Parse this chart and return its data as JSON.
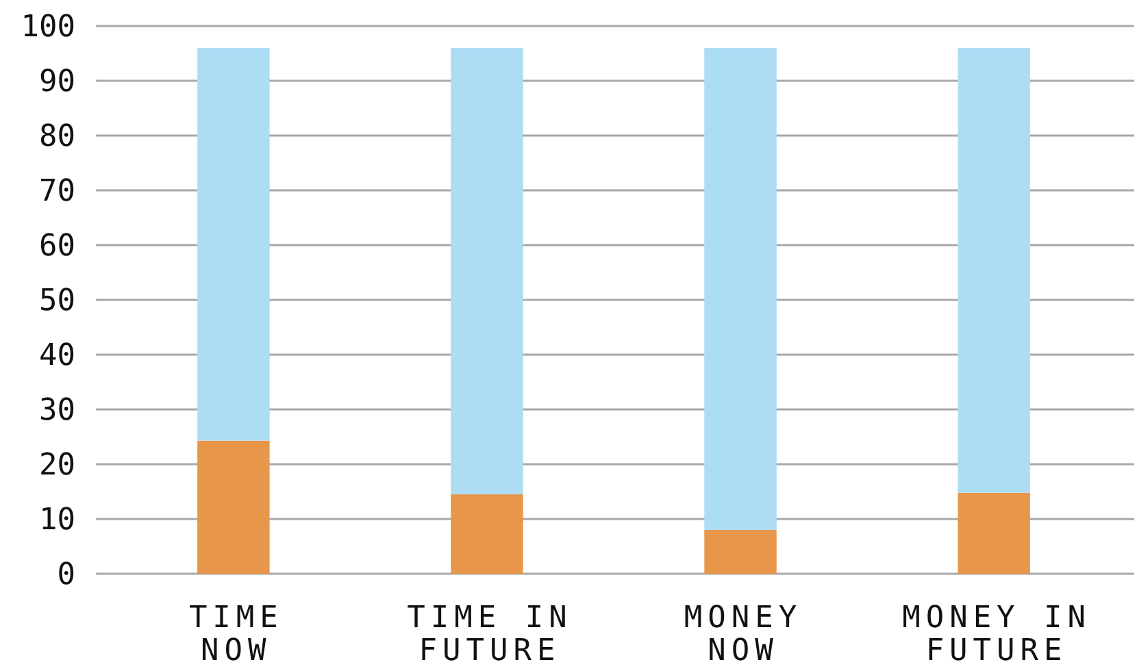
{
  "chart_data": {
    "type": "bar",
    "stacked": true,
    "categories": [
      "TIME NOW",
      "TIME IN FUTURE",
      "MONEY NOW",
      "MONEY IN FUTURE"
    ],
    "series": [
      {
        "color": "#e8974a",
        "values": [
          24.3,
          14.5,
          8,
          14.8
        ]
      },
      {
        "color": "#addcf5",
        "values": [
          71.7,
          81.5,
          88,
          81.2
        ]
      }
    ],
    "ylim": [
      0,
      100
    ],
    "yticks": [
      0,
      10,
      20,
      30,
      40,
      50,
      60,
      70,
      80,
      90,
      100
    ],
    "grid": "y"
  }
}
